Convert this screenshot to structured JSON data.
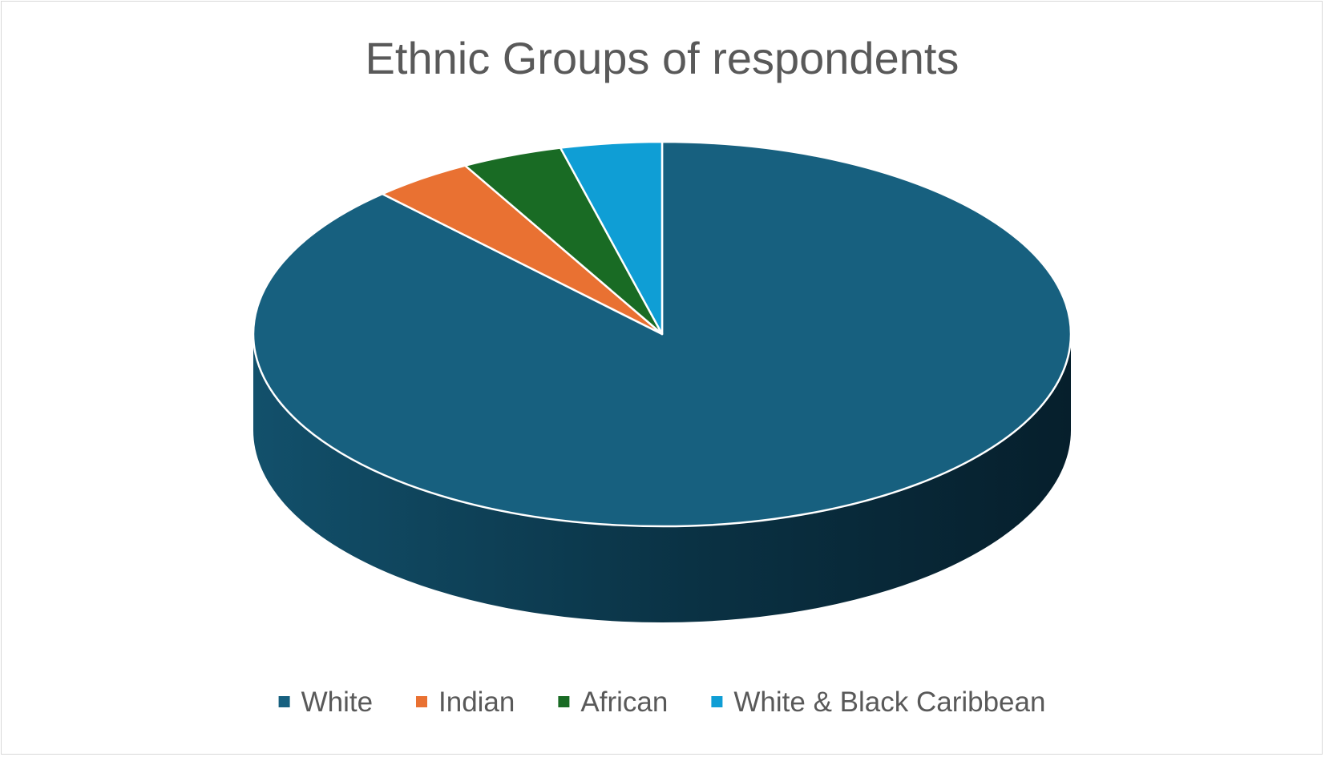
{
  "chart_data": {
    "type": "pie",
    "title": "Ethnic Groups of respondents",
    "categories": [
      "White",
      "Indian",
      "African",
      "White & Black Caribbean"
    ],
    "values": [
      88,
      4,
      4,
      4
    ],
    "unit": "%",
    "colors": [
      "#17607f",
      "#e97132",
      "#196b24",
      "#0f9ed5"
    ],
    "side_color": "#0b3b52",
    "style": "3d",
    "legend_position": "bottom"
  }
}
